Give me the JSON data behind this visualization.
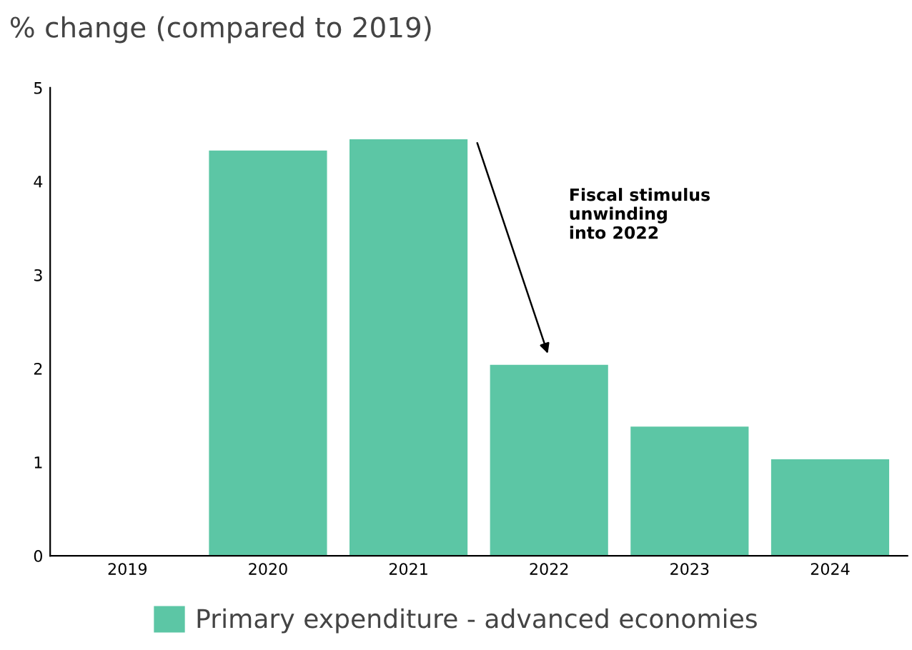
{
  "chart_data": {
    "type": "bar",
    "title": "% change (compared to 2019)",
    "categories": [
      "2019",
      "2020",
      "2021",
      "2022",
      "2023",
      "2024"
    ],
    "series": [
      {
        "name": "Primary expenditure - advanced economies",
        "color": "#5cc6a5",
        "values": [
          0,
          4.33,
          4.45,
          2.04,
          1.38,
          1.03
        ]
      }
    ],
    "ylim": [
      0,
      5
    ],
    "yticks": [
      0,
      1,
      2,
      3,
      4,
      5
    ],
    "grid": false,
    "legend": "bottom",
    "annotations": [
      "Fiscal stimulus\nunwinding\ninto 2022"
    ]
  }
}
